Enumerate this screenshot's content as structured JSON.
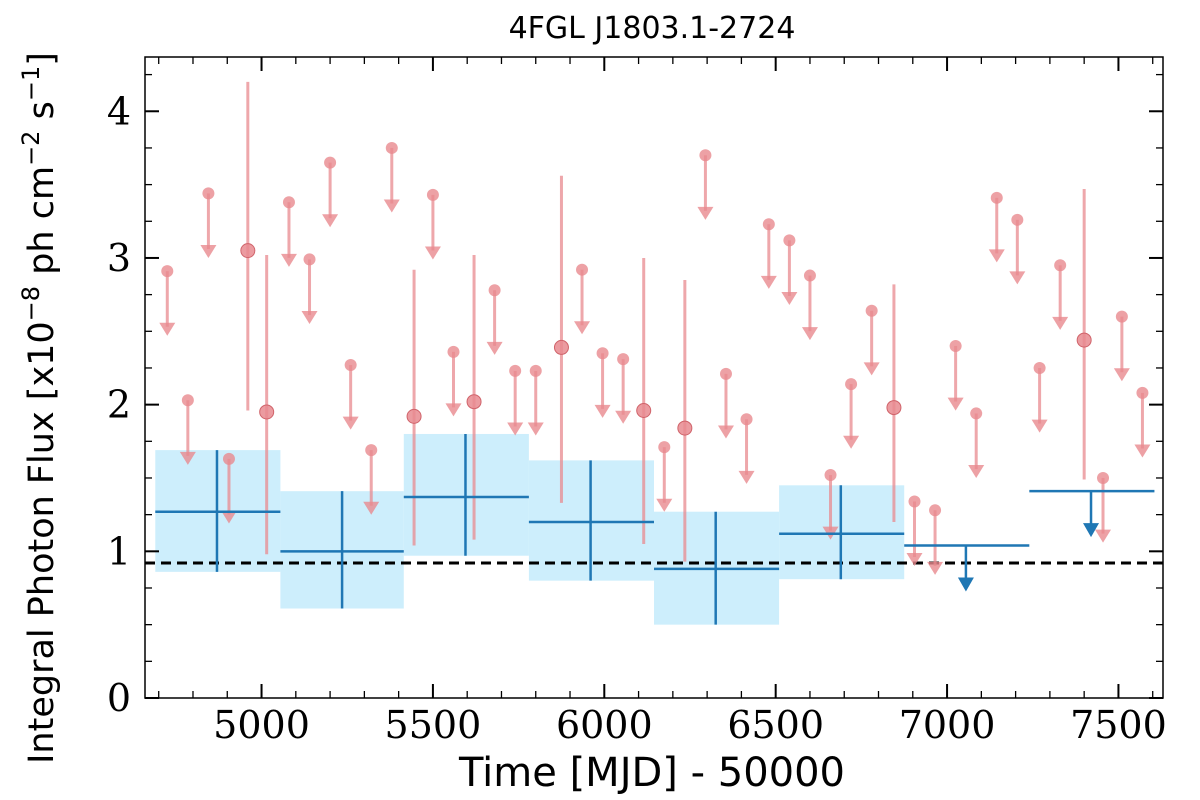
{
  "chart_data": {
    "type": "scatter",
    "title": "4FGL J1803.1-2724",
    "xlabel": "Time [MJD] - 50000",
    "ylabel": {
      "prefix": "Integral Photon Flux [x10",
      "exp1": "−8",
      "mid": " ph cm",
      "exp2": "−2",
      "mid2": " s",
      "exp3": "−1",
      "suffix": "]"
    },
    "xlim": [
      4660,
      7630
    ],
    "ylim": [
      0,
      4.37
    ],
    "xticks": [
      5000,
      5500,
      6000,
      6500,
      7000,
      7500
    ],
    "xtick_labels": [
      "5000",
      "5500",
      "6000",
      "6500",
      "7000",
      "7500"
    ],
    "yticks": [
      0,
      1,
      2,
      3,
      4
    ],
    "ytick_labels": [
      "0",
      "1",
      "2",
      "3",
      "4"
    ],
    "x_minor_step": 100,
    "y_minor_step": 0.25,
    "grid": false,
    "average_flux": 0.92,
    "colors": {
      "short": "#e88a8f",
      "long": "#1f77b4",
      "band": "#cdeefc",
      "average_line": "#000000"
    },
    "series": [
      {
        "bin": "short",
        "detections": [
          {
            "x": 4960,
            "y": 3.05,
            "ylo": 1.96,
            "yhi": 4.2
          },
          {
            "x": 5015,
            "y": 1.95,
            "ylo": 0.98,
            "yhi": 3.02
          },
          {
            "x": 5445,
            "y": 1.92,
            "ylo": 1.04,
            "yhi": 2.92
          },
          {
            "x": 5620,
            "y": 2.02,
            "ylo": 1.08,
            "yhi": 3.02
          },
          {
            "x": 5875,
            "y": 2.39,
            "ylo": 1.33,
            "yhi": 3.56
          },
          {
            "x": 6115,
            "y": 1.96,
            "ylo": 1.05,
            "yhi": 3.0
          },
          {
            "x": 6235,
            "y": 1.84,
            "ylo": 0.93,
            "yhi": 2.85
          },
          {
            "x": 7400,
            "y": 2.44,
            "ylo": 1.49,
            "yhi": 3.47
          },
          {
            "x": 6845,
            "y": 1.98,
            "ylo": 1.2,
            "yhi": 2.82
          }
        ],
        "upper_limits": [
          {
            "x": 4725,
            "y": 2.91
          },
          {
            "x": 4785,
            "y": 2.03
          },
          {
            "x": 4845,
            "y": 3.44
          },
          {
            "x": 4905,
            "y": 1.63
          },
          {
            "x": 5080,
            "y": 3.38
          },
          {
            "x": 5140,
            "y": 2.99
          },
          {
            "x": 5200,
            "y": 3.65
          },
          {
            "x": 5260,
            "y": 2.27
          },
          {
            "x": 5320,
            "y": 1.69
          },
          {
            "x": 5380,
            "y": 3.75
          },
          {
            "x": 5500,
            "y": 3.43
          },
          {
            "x": 5560,
            "y": 2.36
          },
          {
            "x": 5680,
            "y": 2.78
          },
          {
            "x": 5740,
            "y": 2.23
          },
          {
            "x": 5800,
            "y": 2.23
          },
          {
            "x": 5935,
            "y": 2.92
          },
          {
            "x": 5995,
            "y": 2.35
          },
          {
            "x": 6055,
            "y": 2.31
          },
          {
            "x": 6175,
            "y": 1.71
          },
          {
            "x": 6295,
            "y": 3.7
          },
          {
            "x": 6355,
            "y": 2.21
          },
          {
            "x": 6415,
            "y": 1.9
          },
          {
            "x": 6480,
            "y": 3.23
          },
          {
            "x": 6540,
            "y": 3.12
          },
          {
            "x": 6600,
            "y": 2.88
          },
          {
            "x": 6660,
            "y": 1.52
          },
          {
            "x": 6720,
            "y": 2.14
          },
          {
            "x": 6780,
            "y": 2.64
          },
          {
            "x": 6905,
            "y": 1.34
          },
          {
            "x": 6965,
            "y": 1.28
          },
          {
            "x": 7025,
            "y": 2.4
          },
          {
            "x": 7085,
            "y": 1.94
          },
          {
            "x": 7145,
            "y": 3.41
          },
          {
            "x": 7205,
            "y": 3.26
          },
          {
            "x": 7270,
            "y": 2.25
          },
          {
            "x": 7330,
            "y": 2.95
          },
          {
            "x": 7455,
            "y": 1.5
          },
          {
            "x": 7510,
            "y": 2.6
          },
          {
            "x": 7570,
            "y": 2.08
          }
        ]
      },
      {
        "bin": "long",
        "detections": [
          {
            "x": 4870,
            "x0": 4690,
            "x1": 5055,
            "y": 1.27,
            "ylo": 0.86,
            "yhi": 1.69
          },
          {
            "x": 5235,
            "x0": 5055,
            "x1": 5415,
            "y": 1.0,
            "ylo": 0.61,
            "yhi": 1.41
          },
          {
            "x": 5595,
            "x0": 5415,
            "x1": 5780,
            "y": 1.37,
            "ylo": 0.97,
            "yhi": 1.8
          },
          {
            "x": 5960,
            "x0": 5780,
            "x1": 6145,
            "y": 1.2,
            "ylo": 0.8,
            "yhi": 1.62
          },
          {
            "x": 6325,
            "x0": 6145,
            "x1": 6510,
            "y": 0.88,
            "ylo": 0.5,
            "yhi": 1.27
          },
          {
            "x": 6690,
            "x0": 6510,
            "x1": 6875,
            "y": 1.12,
            "ylo": 0.81,
            "yhi": 1.45
          }
        ],
        "upper_limits": [
          {
            "x": 7055,
            "x0": 6875,
            "x1": 7240,
            "y": 1.04
          },
          {
            "x": 7420,
            "x0": 7240,
            "x1": 7605,
            "y": 1.41
          }
        ]
      }
    ]
  }
}
